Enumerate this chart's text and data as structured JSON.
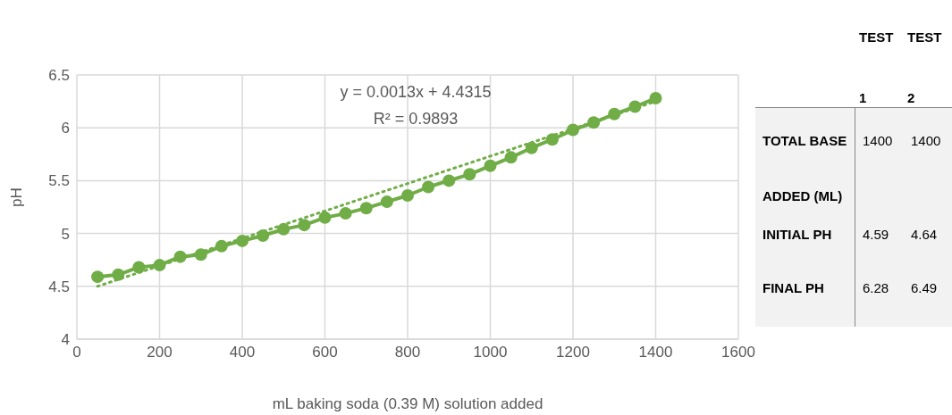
{
  "chart_data": [
    {
      "type": "line",
      "xlabel": "mL baking soda (0.39 M) solution added",
      "ylabel": "pH",
      "annotations": [
        "y = 0.0013x + 4.4315",
        "R² = 0.9893"
      ],
      "xlim": [
        0,
        1600
      ],
      "xticks": [
        0,
        200,
        400,
        600,
        800,
        1000,
        1200,
        1400,
        1600
      ],
      "ylim": [
        4,
        6.5
      ],
      "yticks": [
        4,
        {
          "value": 4.5,
          "label": "4.5"
        },
        5,
        {
          "value": 5.5,
          "label": "5.5"
        },
        6,
        {
          "value": 6.5,
          "label": "6.5"
        }
      ],
      "grid": true,
      "series": [
        {
          "type": "line",
          "color": "#70ad47",
          "marker": "circle",
          "line_style": "solid",
          "x": [
            50,
            100,
            150,
            200,
            250,
            300,
            350,
            400,
            450,
            500,
            550,
            600,
            650,
            700,
            750,
            800,
            850,
            900,
            950,
            1000,
            1050,
            1100,
            1150,
            1200,
            1250,
            1300,
            1350,
            1400
          ],
          "values": [
            4.59,
            4.61,
            4.68,
            4.7,
            4.78,
            4.8,
            4.88,
            4.93,
            4.98,
            5.04,
            5.08,
            5.15,
            5.19,
            5.24,
            5.3,
            5.36,
            5.44,
            5.5,
            5.56,
            5.64,
            5.72,
            5.81,
            5.89,
            5.98,
            6.05,
            6.13,
            6.2,
            6.28
          ]
        },
        {
          "type": "line",
          "color": "#70ad47",
          "marker": "none",
          "line_style": "dotted",
          "x": [
            50,
            1400
          ],
          "values": [
            4.5,
            6.25
          ]
        }
      ]
    },
    {
      "type": "other",
      "annotations": [
        "TEST 1",
        "TEST 2",
        "TOTAL  BASE ADDED (ML)",
        "1400",
        "1400",
        "INITIAL PH",
        "4.59",
        "4.64",
        "FINAL PH",
        "6.28",
        "6.49"
      ]
    }
  ]
}
